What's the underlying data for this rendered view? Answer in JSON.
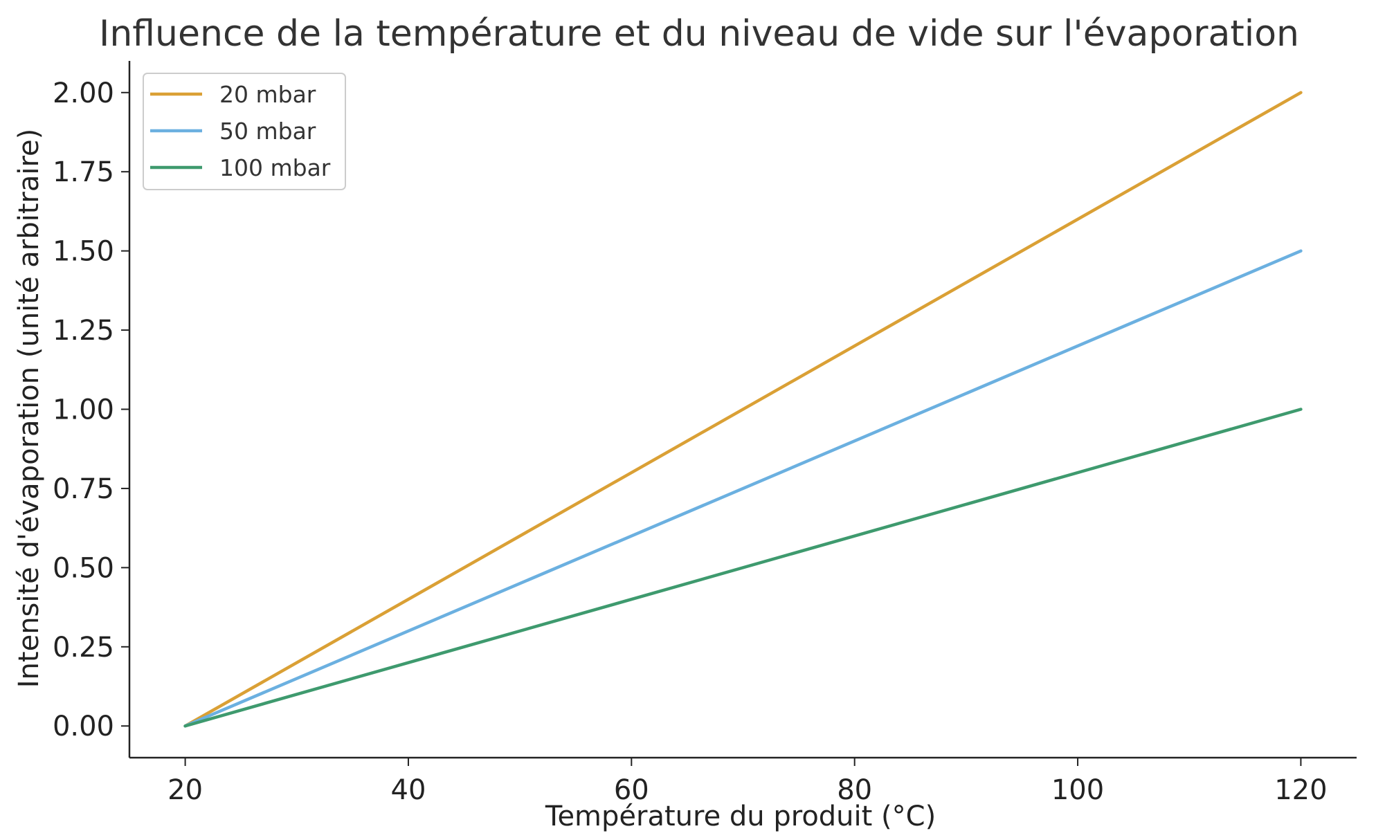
{
  "chart_data": {
    "type": "line",
    "title": "Influence de la température et du niveau de vide sur l'évaporation",
    "xlabel": "Température du produit (°C)",
    "ylabel": "Intensité d'évaporation (unité arbitraire)",
    "xlim": [
      15,
      125
    ],
    "ylim": [
      -0.1,
      2.1
    ],
    "x_ticks": [
      20,
      40,
      60,
      80,
      100,
      120
    ],
    "y_ticks": [
      0.0,
      0.25,
      0.5,
      0.75,
      1.0,
      1.25,
      1.5,
      1.75,
      2.0
    ],
    "x_tick_labels": [
      "20",
      "40",
      "60",
      "80",
      "100",
      "120"
    ],
    "y_tick_labels": [
      "0.00",
      "0.25",
      "0.50",
      "0.75",
      "1.00",
      "1.25",
      "1.50",
      "1.75",
      "2.00"
    ],
    "grid": false,
    "legend_position": "top-left",
    "series": [
      {
        "name": "20 mbar",
        "color": "#DAA035",
        "x": [
          20,
          120
        ],
        "y": [
          0.0,
          2.0
        ]
      },
      {
        "name": "50 mbar",
        "color": "#6BB0E0",
        "x": [
          20,
          120
        ],
        "y": [
          0.0,
          1.5
        ]
      },
      {
        "name": "100 mbar",
        "color": "#3E9A6E",
        "x": [
          20,
          120
        ],
        "y": [
          0.0,
          1.0
        ]
      }
    ]
  }
}
